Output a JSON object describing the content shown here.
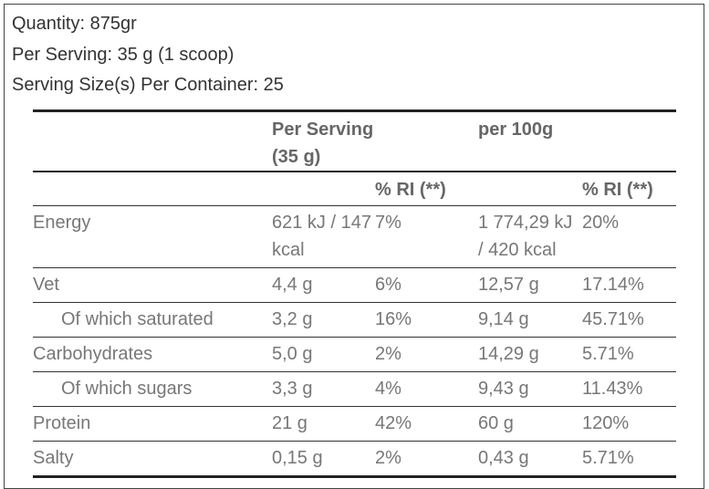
{
  "intro": [
    "Quantity: 875gr",
    "Per Serving: 35 g (1 scoop)",
    "Serving Size(s) Per Container: 25"
  ],
  "table": {
    "header": [
      [
        "",
        "Per Serving (35 g)",
        "",
        "per 100g",
        ""
      ],
      [
        "",
        "",
        "% RI (**)",
        "",
        "% RI (**)"
      ]
    ],
    "rows": [
      [
        "Energy",
        "621 kJ / 147 kcal",
        "7%",
        "1 774,29 kJ / 420 kcal",
        "20%"
      ],
      [
        "Vet",
        "4,4 g",
        "6%",
        "12,57 g",
        "17.14%"
      ],
      [
        "Of which saturated",
        "3,2 g",
        "16%",
        "9,14 g",
        "45.71%"
      ],
      [
        "Carbohydrates",
        "5,0 g",
        "2%",
        "14,29 g",
        "5.71%"
      ],
      [
        "Of which sugars",
        "3,3 g",
        "4%",
        "9,43 g",
        "11.43%"
      ],
      [
        "Protein",
        "21 g",
        "42%",
        "60 g",
        "120%"
      ],
      [
        "Salty",
        "0,15 g",
        "2%",
        "0,43 g",
        "5.71%"
      ]
    ]
  }
}
